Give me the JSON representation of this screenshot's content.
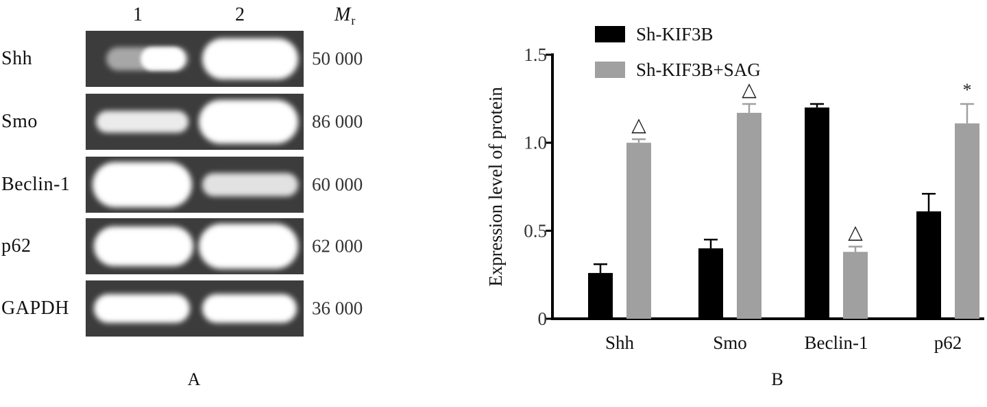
{
  "panel_a": {
    "lane_labels": [
      "1",
      "2"
    ],
    "mr_label": "M",
    "mr_subscript": "r",
    "rows": [
      {
        "protein": "Shh",
        "mw": "50 000",
        "band1_intensity": 0.45,
        "band2_intensity": 1.0
      },
      {
        "protein": "Smo",
        "mw": "86 000",
        "band1_intensity": 0.75,
        "band2_intensity": 1.0
      },
      {
        "protein": "Beclin-1",
        "mw": "60 000",
        "band1_intensity": 1.0,
        "band2_intensity": 0.6
      },
      {
        "protein": "p62",
        "mw": "62 000",
        "band1_intensity": 1.0,
        "band2_intensity": 1.0
      },
      {
        "protein": "GAPDH",
        "mw": "36 000",
        "band1_intensity": 0.9,
        "band2_intensity": 0.9
      }
    ],
    "panel_letter": "A"
  },
  "panel_b": {
    "panel_letter": "B"
  },
  "chart_data": {
    "type": "bar",
    "categories": [
      "Shh",
      "Smo",
      "Beclin-1",
      "p62"
    ],
    "series": [
      {
        "name": "Sh-KIF3B",
        "color": "#000000",
        "values": [
          0.26,
          0.4,
          1.2,
          0.61
        ],
        "errors": [
          0.05,
          0.05,
          0.02,
          0.1
        ],
        "markers": [
          "",
          "",
          "",
          ""
        ]
      },
      {
        "name": "Sh-KIF3B+SAG",
        "color": "#a0a0a0",
        "values": [
          1.0,
          1.17,
          0.38,
          1.11
        ],
        "errors": [
          0.02,
          0.05,
          0.03,
          0.11
        ],
        "markers": [
          "△",
          "△",
          "△",
          "*"
        ]
      }
    ],
    "title": "",
    "xlabel": "",
    "ylabel": "Expression level of protein",
    "ylim": [
      0,
      1.5
    ],
    "yticks": [
      0,
      0.5,
      1.0,
      1.5
    ],
    "ytick_labels": [
      "0",
      "0.5",
      "1.0",
      "1.5"
    ],
    "grid": false,
    "legend": "top-left"
  }
}
